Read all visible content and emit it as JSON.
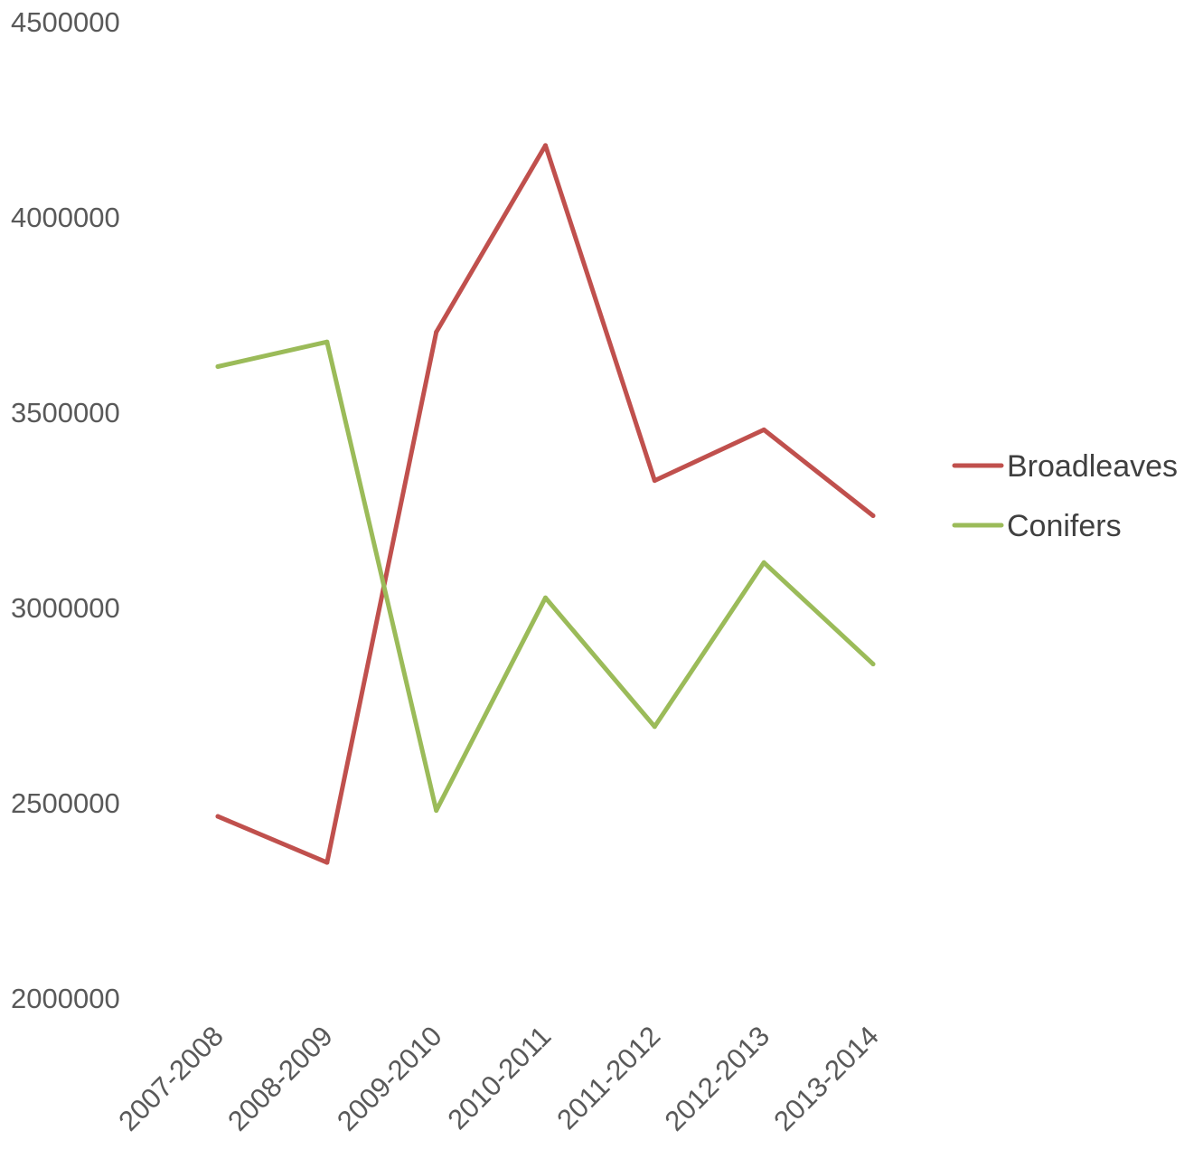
{
  "chart_data": {
    "type": "line",
    "title": "",
    "xlabel": "",
    "ylabel": "",
    "categories": [
      "2007-2008",
      "2008-2009",
      "2009-2010",
      "2010-2011",
      "2011-2012",
      "2012-2013",
      "2013-2014"
    ],
    "y_ticks": [
      "2000000",
      "2500000",
      "3000000",
      "3500000",
      "4000000",
      "4500000"
    ],
    "ylim": [
      2000000,
      4500000
    ],
    "grid": false,
    "legend_position": "right",
    "series": [
      {
        "name": "Broadleaves",
        "color": "#C0504D",
        "values": [
          2465000,
          2347000,
          3705000,
          4183000,
          3325000,
          3455000,
          3235000
        ]
      },
      {
        "name": "Conifers",
        "color": "#9BBB59",
        "values": [
          3617000,
          3680000,
          2480000,
          3025000,
          2695000,
          3115000,
          2855000
        ]
      }
    ]
  }
}
